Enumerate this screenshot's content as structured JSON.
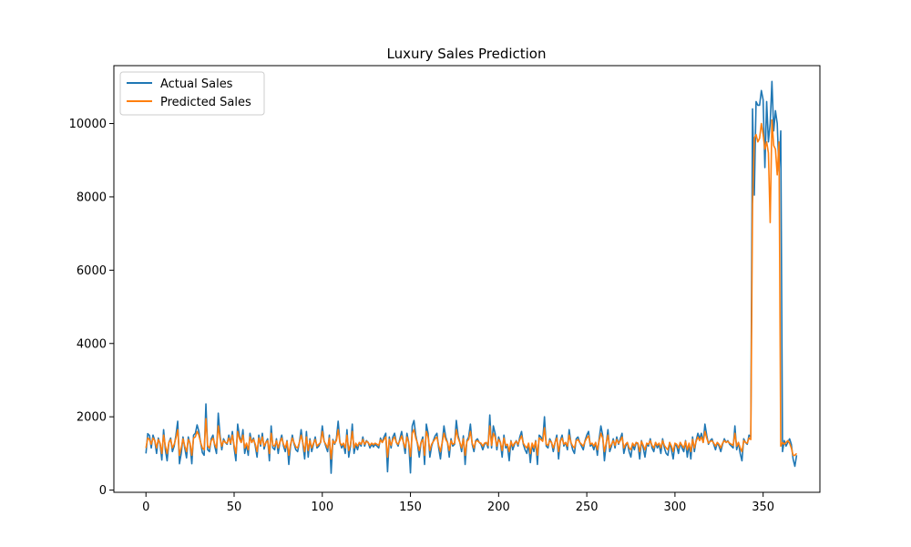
{
  "chart_data": {
    "type": "line",
    "title": "Luxury Sales Prediction",
    "xlabel": "",
    "ylabel": "",
    "xlim": [
      -18.2,
      382.2
    ],
    "ylim": [
      -60,
      11580
    ],
    "x_ticks": [
      0,
      50,
      100,
      150,
      200,
      250,
      300,
      350
    ],
    "y_ticks": [
      0,
      2000,
      4000,
      6000,
      8000,
      10000
    ],
    "grid": false,
    "legend_position": "upper-left",
    "series": [
      {
        "name": "Actual Sales",
        "color": "#1f77b4",
        "values": [
          1000,
          1540,
          1490,
          1150,
          1500,
          1350,
          1000,
          1420,
          1250,
          820,
          1650,
          1100,
          800,
          1300,
          1420,
          1050,
          1200,
          1500,
          1880,
          720,
          1000,
          1450,
          1150,
          880,
          1450,
          1250,
          720,
          1500,
          1550,
          1780,
          1600,
          1300,
          1020,
          950,
          2350,
          1100,
          1050,
          1400,
          1500,
          1200,
          1000,
          2100,
          1500,
          1100,
          1400,
          1300,
          1250,
          1500,
          1250,
          1600,
          1150,
          800,
          1800,
          1480,
          1300,
          1650,
          1000,
          1250,
          950,
          1550,
          1300,
          1420,
          1200,
          900,
          1500,
          1200,
          1550,
          1120,
          1300,
          1400,
          800,
          1750,
          1150,
          1100,
          1400,
          1000,
          1320,
          1500,
          1200,
          1050,
          1350,
          700,
          1200,
          1500,
          1260,
          1100,
          1050,
          1300,
          1650,
          1250,
          850,
          1600,
          900,
          1400,
          1050,
          1250,
          1450,
          1150,
          1200,
          1300,
          1750,
          1350,
          1200,
          1050,
          1500,
          460,
          1380,
          1250,
          1400,
          1880,
          1300,
          1150,
          1250,
          1000,
          1650,
          900,
          1200,
          1800,
          1000,
          1250,
          1100,
          1300,
          1200,
          1450,
          1200,
          1350,
          1300,
          1150,
          1250,
          1180,
          1250,
          1200,
          1150,
          1420,
          1300,
          1450,
          1550,
          500,
          1450,
          1150,
          1450,
          1550,
          1300,
          1200,
          1400,
          1600,
          1300,
          1000,
          1550,
          1300,
          470,
          1750,
          1900,
          1500,
          1250,
          900,
          1300,
          1450,
          700,
          1800,
          1550,
          900,
          1200,
          1350,
          1480,
          1550,
          1150,
          850,
          1300,
          1750,
          1450,
          1300,
          900,
          1400,
          1200,
          1250,
          1900,
          1500,
          1300,
          1050,
          1480,
          700,
          1350,
          1450,
          1800,
          1250,
          1050,
          1350,
          1400,
          1300,
          1250,
          1100,
          1250,
          1300,
          1150,
          2050,
          1150,
          1750,
          1550,
          1100,
          1450,
          1300,
          900,
          1500,
          1150,
          1200,
          800,
          1350,
          1100,
          1250,
          1350,
          1200,
          1450,
          1600,
          1250,
          1100,
          1000,
          1250,
          750,
          1250,
          1050,
          1350,
          700,
          1500,
          1450,
          1350,
          2000,
          1200,
          1150,
          1400,
          1300,
          1050,
          1300,
          1500,
          850,
          1350,
          1500,
          1200,
          1300,
          1100,
          1650,
          1300,
          1100,
          1000,
          1400,
          1450,
          1300,
          1200,
          1100,
          1350,
          1500,
          1600,
          1200,
          1250,
          1100,
          1300,
          950,
          1400,
          1750,
          1500,
          800,
          1250,
          1650,
          1050,
          1200,
          1400,
          1150,
          1450,
          1250,
          1400,
          1550,
          1000,
          1200,
          1300,
          1050,
          900,
          1250,
          1100,
          1300,
          1250,
          850,
          1350,
          1150,
          900,
          1250,
          1200,
          1400,
          1150,
          1050,
          1300,
          1150,
          1250,
          1000,
          1400,
          1150,
          1000,
          950,
          1300,
          1100,
          850,
          1250,
          1200,
          1000,
          1300,
          1150,
          1050,
          1350,
          900,
          1250,
          850,
          1450,
          1050,
          1350,
          1550,
          1400,
          1550,
          1300,
          1800,
          1500,
          1250,
          1350,
          1400,
          1250,
          1100,
          1300,
          1200,
          1050,
          1250,
          1400,
          1300,
          1350,
          1250,
          1200,
          1150,
          1750,
          1100,
          1300,
          1000,
          800,
          1400,
          1300,
          1250,
          1500,
          1450,
          10400,
          8050,
          10600,
          10500,
          10500,
          10900,
          10650,
          8800,
          10600,
          9500,
          10000,
          11150,
          9800,
          10350,
          10000,
          8700,
          9800,
          1050,
          1350,
          1200,
          1300,
          1400,
          1250,
          850,
          650,
          950
        ],
        "x_start": 0
      },
      {
        "name": "Predicted Sales",
        "color": "#ff7f0e",
        "values": [
          1150,
          1420,
          1380,
          1250,
          1420,
          1350,
          1150,
          1380,
          1280,
          1000,
          1500,
          1200,
          1000,
          1300,
          1380,
          1150,
          1250,
          1420,
          1650,
          950,
          1150,
          1400,
          1200,
          1050,
          1380,
          1280,
          950,
          1420,
          1450,
          1600,
          1500,
          1300,
          1150,
          1100,
          1950,
          1200,
          1150,
          1350,
          1420,
          1250,
          1150,
          1750,
          1420,
          1200,
          1350,
          1300,
          1280,
          1420,
          1280,
          1500,
          1220,
          1000,
          1600,
          1400,
          1300,
          1500,
          1150,
          1280,
          1100,
          1450,
          1300,
          1380,
          1250,
          1050,
          1420,
          1250,
          1450,
          1200,
          1300,
          1350,
          1000,
          1550,
          1220,
          1200,
          1350,
          1150,
          1320,
          1420,
          1250,
          1150,
          1330,
          950,
          1250,
          1420,
          1290,
          1180,
          1150,
          1300,
          1500,
          1280,
          1050,
          1450,
          1080,
          1350,
          1150,
          1280,
          1380,
          1200,
          1250,
          1300,
          1600,
          1330,
          1250,
          1150,
          1420,
          850,
          1350,
          1280,
          1350,
          1650,
          1300,
          1220,
          1280,
          1150,
          1500,
          1080,
          1250,
          1600,
          1150,
          1280,
          1200,
          1300,
          1250,
          1380,
          1250,
          1330,
          1300,
          1220,
          1280,
          1240,
          1280,
          1250,
          1220,
          1370,
          1300,
          1380,
          1450,
          900,
          1380,
          1220,
          1380,
          1450,
          1300,
          1250,
          1350,
          1480,
          1300,
          1150,
          1450,
          1300,
          920,
          1550,
          1650,
          1420,
          1280,
          1080,
          1300,
          1380,
          950,
          1600,
          1450,
          1080,
          1250,
          1330,
          1400,
          1450,
          1220,
          1050,
          1300,
          1550,
          1380,
          1300,
          1080,
          1350,
          1250,
          1280,
          1650,
          1420,
          1300,
          1150,
          1400,
          950,
          1330,
          1380,
          1600,
          1280,
          1150,
          1330,
          1350,
          1300,
          1280,
          1200,
          1280,
          1300,
          1220,
          1750,
          1220,
          1550,
          1450,
          1200,
          1380,
          1300,
          1080,
          1420,
          1220,
          1250,
          1050,
          1330,
          1200,
          1280,
          1330,
          1250,
          1380,
          1480,
          1280,
          1200,
          1150,
          1280,
          1000,
          1280,
          1150,
          1330,
          950,
          1420,
          1380,
          1330,
          1700,
          1250,
          1220,
          1350,
          1300,
          1150,
          1300,
          1420,
          1050,
          1330,
          1420,
          1250,
          1300,
          1200,
          1500,
          1300,
          1200,
          1150,
          1350,
          1380,
          1300,
          1250,
          1200,
          1330,
          1420,
          1480,
          1250,
          1280,
          1200,
          1300,
          1100,
          1350,
          1550,
          1420,
          1050,
          1280,
          1500,
          1150,
          1250,
          1350,
          1220,
          1380,
          1280,
          1350,
          1450,
          1150,
          1250,
          1300,
          1150,
          1100,
          1280,
          1200,
          1300,
          1280,
          1050,
          1330,
          1220,
          1100,
          1280,
          1250,
          1350,
          1220,
          1150,
          1300,
          1220,
          1280,
          1150,
          1350,
          1220,
          1150,
          1100,
          1300,
          1200,
          1050,
          1280,
          1250,
          1150,
          1300,
          1220,
          1150,
          1330,
          1100,
          1280,
          1050,
          1380,
          1150,
          1330,
          1450,
          1350,
          1450,
          1300,
          1600,
          1420,
          1280,
          1330,
          1350,
          1280,
          1200,
          1300,
          1250,
          1150,
          1280,
          1350,
          1300,
          1330,
          1280,
          1250,
          1220,
          1550,
          1200,
          1300,
          1150,
          1050,
          1350,
          1300,
          1280,
          1420,
          1380,
          7800,
          9600,
          9700,
          9500,
          9600,
          10000,
          9700,
          9300,
          9500,
          9200,
          7300,
          10100,
          9400,
          9300,
          8600,
          9500,
          1200,
          1300,
          1250,
          1300,
          1350,
          1280,
          1150,
          950,
          950,
          1000
        ],
        "x_start": 0
      }
    ]
  }
}
